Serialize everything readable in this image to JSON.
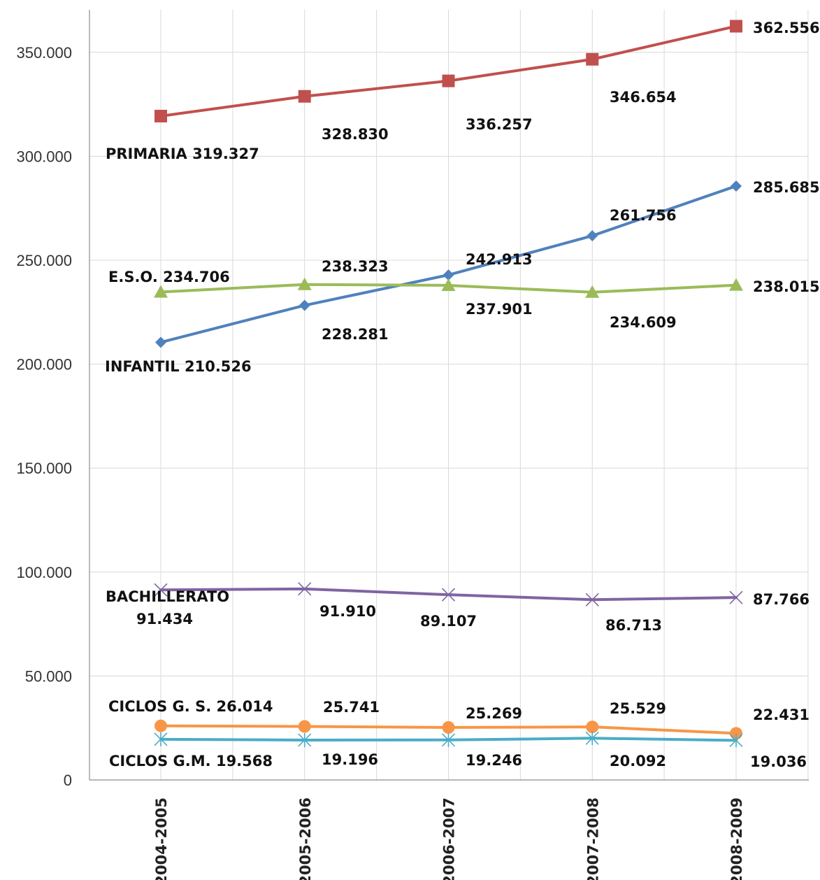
{
  "chart_data": {
    "type": "line",
    "title": "",
    "xlabel": "",
    "ylabel": "",
    "categories": [
      "2004-2005",
      "2005-2006",
      "2006-2007",
      "2007-2008",
      "2008-2009"
    ],
    "ylim": [
      0,
      370000
    ],
    "yticks": [
      0,
      50000,
      100000,
      150000,
      200000,
      250000,
      300000,
      350000
    ],
    "ytick_labels": [
      "0",
      "50.000",
      "100.000",
      "150.000",
      "200.000",
      "250.000",
      "300.000",
      "350.000"
    ],
    "grid": true,
    "legend": "none",
    "series": [
      {
        "name": "PRIMARIA",
        "color": "#c0504d",
        "marker": "square",
        "values": [
          319327,
          328830,
          336257,
          346654,
          362556
        ],
        "labels": [
          "PRIMARIA 319.327",
          "328.830",
          "336.257",
          "346.654",
          "362.556"
        ]
      },
      {
        "name": "INFANTIL",
        "color": "#4f81bd",
        "marker": "diamond",
        "values": [
          210526,
          228281,
          242913,
          261756,
          285685
        ],
        "labels": [
          "INFANTIL 210.526",
          "228.281",
          "242.913",
          "261.756",
          "285.685"
        ]
      },
      {
        "name": "E.S.O.",
        "color": "#9bbb59",
        "marker": "triangle",
        "values": [
          234706,
          238323,
          237901,
          234609,
          238015
        ],
        "labels": [
          "E.S.O. 234.706",
          "238.323",
          "237.901",
          "234.609",
          "238.015"
        ]
      },
      {
        "name": "BACHILLERATO",
        "color": "#8064a2",
        "marker": "x",
        "values": [
          91434,
          91910,
          89107,
          86713,
          87766
        ],
        "labels": [
          "BACHILLERATO",
          "91.910",
          "89.107",
          "86.713",
          "87.766"
        ],
        "extra_label": "91.434"
      },
      {
        "name": "CICLOS G. S.",
        "color": "#f79646",
        "marker": "circle",
        "values": [
          26014,
          25741,
          25269,
          25529,
          22431
        ],
        "labels": [
          "CICLOS G. S. 26.014",
          "25.741",
          "25.269",
          "25.529",
          "22.431"
        ]
      },
      {
        "name": "CICLOS G.M.",
        "color": "#4bacc6",
        "marker": "star",
        "values": [
          19568,
          19196,
          19246,
          20092,
          19036
        ],
        "labels": [
          "CICLOS G.M. 19.568",
          "19.196",
          "19.246",
          "20.092",
          "19.036"
        ]
      }
    ]
  }
}
